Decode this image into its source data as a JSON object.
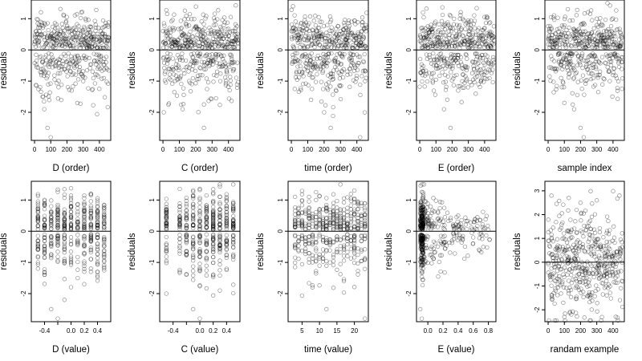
{
  "chart_data": [
    {
      "type": "scatter",
      "xlabel": "D (order)",
      "ylabel": "residuals",
      "xlim": [
        -20,
        470
      ],
      "ylim": [
        -2.9,
        1.6
      ],
      "xticks": [
        0,
        100,
        200,
        300,
        400
      ],
      "yticks": [
        -2,
        -1,
        0,
        1
      ],
      "ref_y": 0,
      "pattern": "order",
      "n": 470,
      "seed": 11,
      "x": [
        10,
        50,
        60,
        80,
        100,
        150,
        200,
        250,
        300,
        350,
        400,
        450
      ],
      "y": [
        0.6,
        -1.5,
        -1.9,
        -2.5,
        -2.8,
        0.5,
        0.7,
        -0.2,
        -1.0,
        0.4,
        -0.4,
        0.8
      ]
    },
    {
      "type": "scatter",
      "xlabel": "C (order)",
      "ylabel": "residuals",
      "xlim": [
        -20,
        470
      ],
      "ylim": [
        -2.9,
        1.6
      ],
      "xticks": [
        0,
        100,
        200,
        300,
        400
      ],
      "yticks": [
        -2,
        -1,
        0,
        1
      ],
      "ref_y": 0,
      "pattern": "order",
      "n": 470,
      "seed": 23,
      "x": [
        5,
        60,
        120,
        160,
        250,
        300,
        350,
        420
      ],
      "y": [
        -2.0,
        0.7,
        -1.9,
        -1.0,
        -2.5,
        0.5,
        -1.0,
        0.6
      ]
    },
    {
      "type": "scatter",
      "xlabel": "time (order)",
      "ylabel": "residuals",
      "xlim": [
        -20,
        470
      ],
      "ylim": [
        -2.9,
        1.6
      ],
      "xticks": [
        0,
        100,
        200,
        300,
        400
      ],
      "yticks": [
        -2,
        -1,
        0,
        1
      ],
      "ref_y": 0,
      "pattern": "order",
      "n": 470,
      "seed": 37,
      "x": [
        10,
        120,
        200,
        240,
        300,
        420,
        450
      ],
      "y": [
        1.4,
        -1.6,
        -2.0,
        -2.5,
        0.6,
        -2.8,
        -1.0
      ]
    },
    {
      "type": "scatter",
      "xlabel": "E (order)",
      "ylabel": "residuals",
      "xlim": [
        -20,
        470
      ],
      "ylim": [
        -2.9,
        1.6
      ],
      "xticks": [
        0,
        100,
        200,
        300,
        400
      ],
      "yticks": [
        -2,
        -1,
        0,
        1
      ],
      "ref_y": 0,
      "pattern": "order",
      "n": 470,
      "seed": 41,
      "x": [
        20,
        80,
        150,
        190,
        300,
        400,
        440
      ],
      "y": [
        1.2,
        -1.0,
        -1.9,
        -2.5,
        0.5,
        0.7,
        -0.5
      ]
    },
    {
      "type": "scatter",
      "xlabel": "sample index",
      "ylabel": "residuals",
      "xlim": [
        -20,
        470
      ],
      "ylim": [
        -2.9,
        1.6
      ],
      "xticks": [
        0,
        100,
        200,
        300,
        400
      ],
      "yticks": [
        -2,
        -1,
        0,
        1
      ],
      "ref_y": 0,
      "pattern": "order",
      "n": 470,
      "seed": 53,
      "x": [
        20,
        100,
        160,
        200,
        220,
        300,
        380,
        450
      ],
      "y": [
        0.7,
        -1.7,
        -1.9,
        -2.5,
        -2.8,
        1.0,
        -1.0,
        0.4
      ]
    },
    {
      "type": "scatter",
      "xlabel": "D (value)",
      "ylabel": "residuals",
      "xlim": [
        -0.6,
        0.6
      ],
      "ylim": [
        -2.9,
        1.6
      ],
      "xticks": [
        -0.4,
        -0.2,
        0.0,
        0.2,
        0.4
      ],
      "xticklabels": [
        "-0.4",
        "",
        "0.0",
        "0.2",
        "0.4"
      ],
      "yticks": [
        -2,
        -1,
        0,
        1
      ],
      "ref_y": 0,
      "pattern": "discrete",
      "levels": [
        -0.5,
        -0.4,
        -0.3,
        -0.2,
        -0.1,
        0.0,
        0.1,
        0.2,
        0.3,
        0.4,
        0.5
      ],
      "n": 470,
      "seed": 61,
      "x": [
        -0.3,
        -0.2,
        -0.1,
        0.1,
        -0.5
      ],
      "y": [
        -2.5,
        -2.8,
        -2.2,
        -1.5,
        -1.2
      ]
    },
    {
      "type": "scatter",
      "xlabel": "C (value)",
      "ylabel": "residuals",
      "xlim": [
        -0.6,
        0.6
      ],
      "ylim": [
        -2.9,
        1.6
      ],
      "xticks": [
        -0.4,
        -0.2,
        0.0,
        0.2,
        0.4
      ],
      "xticklabels": [
        "-0.4",
        "",
        "0.0",
        "0.2",
        "0.4"
      ],
      "yticks": [
        -2,
        -1,
        0,
        1
      ],
      "ref_y": 0,
      "pattern": "discrete",
      "levels": [
        -0.5,
        -0.3,
        -0.2,
        -0.1,
        0.0,
        0.1,
        0.2,
        0.3,
        0.4,
        0.5
      ],
      "n": 470,
      "seed": 71,
      "x": [
        -0.5,
        0.0,
        -0.1,
        0.3
      ],
      "y": [
        -2.0,
        -2.8,
        -2.5,
        -1.9
      ]
    },
    {
      "type": "scatter",
      "xlabel": "time (value)",
      "ylabel": "residuals",
      "xlim": [
        1,
        24
      ],
      "ylim": [
        -2.9,
        1.6
      ],
      "xticks": [
        5,
        10,
        15,
        20
      ],
      "yticks": [
        -2,
        -1,
        0,
        1
      ],
      "ref_y": 0,
      "pattern": "discrete",
      "levels": [
        3,
        4,
        5,
        6,
        7,
        8,
        9,
        10,
        11,
        12,
        13,
        14,
        15,
        16,
        17,
        18,
        19,
        20,
        21,
        22,
        23
      ],
      "n": 470,
      "seed": 83,
      "x": [
        12,
        23,
        8,
        17
      ],
      "y": [
        -2.5,
        -2.8,
        -1.8,
        -1.6
      ]
    },
    {
      "type": "scatter",
      "xlabel": "E (value)",
      "ylabel": "residuals",
      "xlim": [
        -0.15,
        0.9
      ],
      "ylim": [
        -2.9,
        1.6
      ],
      "xticks": [
        0.0,
        0.2,
        0.4,
        0.6,
        0.8
      ],
      "xticklabels": [
        "0.0",
        "0.2",
        "0.4",
        "0.6",
        "0.8"
      ],
      "yticks": [
        -2,
        -1,
        0,
        1
      ],
      "ref_y": 0,
      "pattern": "skewed",
      "n": 470,
      "seed": 97,
      "x": [
        -0.1,
        -0.08,
        0.4,
        0.6,
        0.75
      ],
      "y": [
        -2.5,
        -2.8,
        0.5,
        -0.2,
        0.1
      ]
    },
    {
      "type": "scatter",
      "xlabel": "randam example",
      "ylabel": "residuals",
      "xlim": [
        -20,
        470
      ],
      "ylim": [
        -2.5,
        3.4
      ],
      "xticks": [
        0,
        100,
        200,
        300,
        400
      ],
      "yticks": [
        -2,
        -1,
        0,
        1,
        2,
        3
      ],
      "ref_y": 0,
      "pattern": "normal",
      "n": 470,
      "seed": 101,
      "x": [
        20,
        200,
        300,
        440,
        100
      ],
      "y": [
        2.8,
        2.5,
        2.6,
        2.8,
        -2.3
      ]
    }
  ]
}
